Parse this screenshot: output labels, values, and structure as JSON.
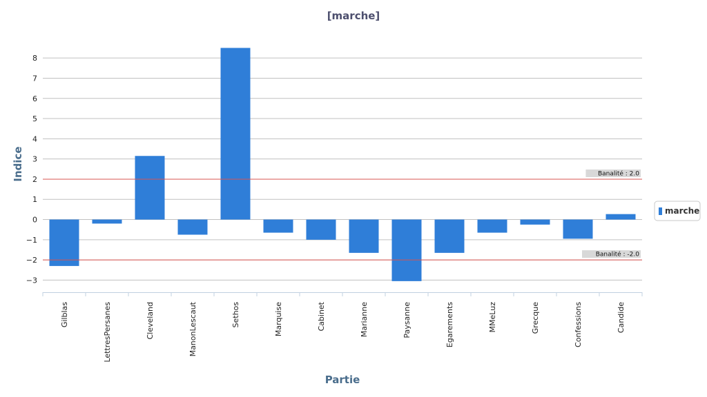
{
  "chart_data": {
    "type": "bar",
    "title": "[marche]",
    "xlabel": "Partie",
    "ylabel": "Indice",
    "ylim": [
      -3.6,
      9.2
    ],
    "yticks": [
      -3,
      -2,
      -1,
      0,
      1,
      2,
      3,
      4,
      5,
      6,
      7,
      8
    ],
    "grid": true,
    "legend_position": "right",
    "categories": [
      "Gilblas",
      "LettresPersanes",
      "Cleveland",
      "ManonLescaut",
      "Sethos",
      "Marquise",
      "Cabinet",
      "Marianne",
      "Paysanne",
      "Egarements",
      "MMeLuz",
      "Grecque",
      "Confessions",
      "Candide"
    ],
    "series": [
      {
        "name": "marche",
        "color": "#2f7ed8",
        "values": [
          -2.3,
          -0.2,
          3.15,
          -0.75,
          8.5,
          -0.65,
          -1.0,
          -1.65,
          -3.05,
          -1.65,
          -0.65,
          -0.25,
          -0.95,
          0.27
        ]
      }
    ],
    "reference_lines": [
      {
        "value": 2.0,
        "label": "Banalité : 2.0",
        "color": "#d9534f"
      },
      {
        "value": -2.0,
        "label": "Banalité : -2.0",
        "color": "#d9534f"
      }
    ]
  }
}
